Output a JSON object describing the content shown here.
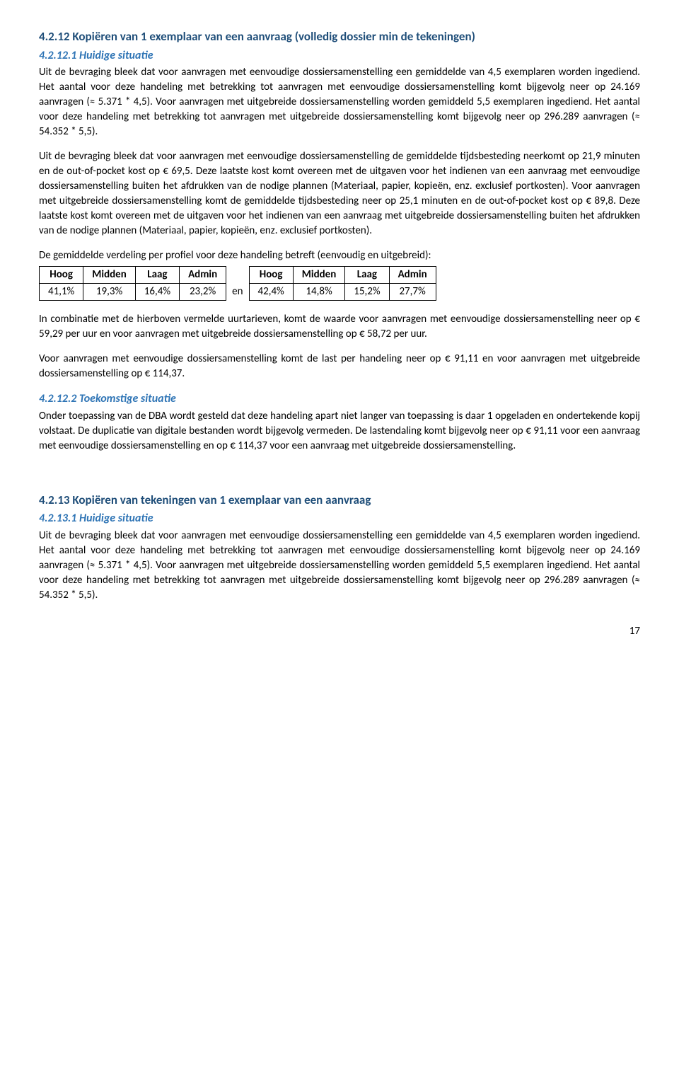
{
  "section412": {
    "heading": "4.2.12  Kopiëren van 1 exemplaar van een aanvraag (volledig dossier min de tekeningen)",
    "sub1": {
      "heading": "4.2.12.1  Huidige situatie",
      "para1": "Uit de bevraging bleek dat voor aanvragen met eenvoudige dossiersamenstelling een gemiddelde van 4,5 exemplaren worden ingediend. Het aantal voor deze handeling met betrekking tot aanvragen met eenvoudige dossiersamenstelling komt bijgevolg neer op 24.169 aanvragen (≈ 5.371 * 4,5). Voor aanvragen met uitgebreide dossiersamenstelling worden gemiddeld 5,5 exemplaren ingediend. Het aantal voor deze handeling met betrekking tot aanvragen met uitgebreide dossiersamenstelling komt bijgevolg neer op 296.289 aanvragen (≈ 54.352 * 5,5).",
      "para2": "Uit de bevraging bleek dat voor aanvragen met eenvoudige dossiersamenstelling de gemiddelde tijdsbesteding neerkomt op 21,9 minuten en de out-of-pocket kost op € 69,5. Deze laatste kost komt overeen met de uitgaven voor het indienen van een aanvraag met eenvoudige dossiersamenstelling buiten het afdrukken van de nodige plannen (Materiaal, papier, kopieën, enz. exclusief portkosten). Voor aanvragen met uitgebreide dossiersamenstelling komt de gemiddelde tijdsbesteding neer op 25,1 minuten en de out-of-pocket kost op € 89,8. Deze laatste kost komt overeen met de uitgaven voor het indienen van een aanvraag met uitgebreide dossiersamenstelling buiten het afdrukken van de nodige plannen (Materiaal, papier, kopieën, enz. exclusief portkosten).",
      "para3": "De gemiddelde verdeling per profiel voor deze handeling betreft (eenvoudig en uitgebreid):",
      "para4": "In combinatie met de hierboven vermelde uurtarieven, komt de waarde voor aanvragen met eenvoudige dossiersamenstelling neer op € 59,29 per uur en voor aanvragen met uitgebreide dossiersamenstelling op € 58,72 per uur.",
      "para5": "Voor aanvragen met eenvoudige dossiersamenstelling komt de last per handeling neer op € 91,11 en voor aanvragen met uitgebreide dossiersamenstelling op € 114,37."
    },
    "tables": {
      "headers": [
        "Hoog",
        "Midden",
        "Laag",
        "Admin"
      ],
      "left": [
        "41,1%",
        "19,3%",
        "16,4%",
        "23,2%"
      ],
      "right": [
        "42,4%",
        "14,8%",
        "15,2%",
        "27,7%"
      ],
      "connector": "en"
    },
    "sub2": {
      "heading": "4.2.12.2  Toekomstige situatie",
      "para1": "Onder toepassing van de DBA wordt gesteld dat deze handeling apart niet langer van toepassing is daar 1 opgeladen en ondertekende kopij volstaat. De duplicatie van digitale bestanden wordt bijgevolg vermeden. De lastendaling komt bijgevolg neer op € 91,11 voor een aanvraag met eenvoudige dossiersamenstelling en op € 114,37 voor een aanvraag met uitgebreide dossiersamenstelling."
    }
  },
  "section413": {
    "heading": "4.2.13  Kopiëren van tekeningen van 1 exemplaar van een aanvraag",
    "sub1": {
      "heading": "4.2.13.1  Huidige situatie",
      "para1": "Uit de bevraging bleek dat voor aanvragen met eenvoudige dossiersamenstelling een gemiddelde van 4,5 exemplaren worden ingediend. Het aantal voor deze handeling met betrekking tot aanvragen met eenvoudige dossiersamenstelling komt bijgevolg neer op 24.169 aanvragen (≈ 5.371 * 4,5). Voor aanvragen met uitgebreide dossiersamenstelling worden gemiddeld 5,5 exemplaren ingediend. Het aantal voor deze handeling met betrekking tot aanvragen met uitgebreide dossiersamenstelling komt bijgevolg neer op 296.289 aanvragen (≈ 54.352 * 5,5)."
    }
  },
  "pageNumber": "17"
}
